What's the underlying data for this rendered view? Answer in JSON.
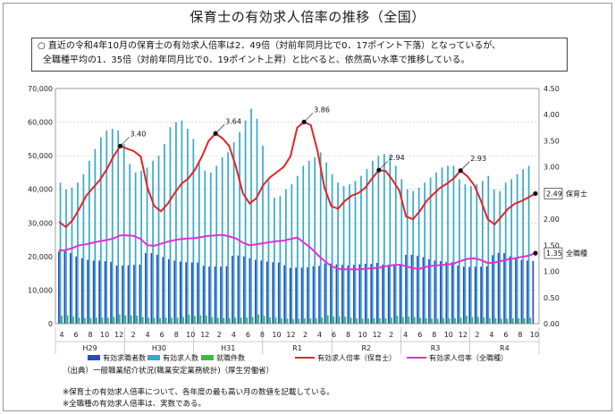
{
  "title": "保育士の有効求人倍率の推移（全国）",
  "summary": {
    "marker": "○",
    "line1": "直近の令和4年10月の保育士の有効求人倍率は2．49倍（対前年同月比で0．17ポイント下落）となっているが、",
    "line2": "全職種平均の1．35倍（対前年同月比で0．19ポイント上昇）と比べると、依然高い水準で推移している。"
  },
  "chart_data": {
    "type": "bar",
    "x_month_labels": [
      "4",
      "6",
      "8",
      "10",
      "12",
      "2",
      "4",
      "6",
      "8",
      "10",
      "12",
      "2",
      "4",
      "6",
      "8",
      "10",
      "12",
      "2",
      "4",
      "6",
      "8",
      "10",
      "12",
      "2",
      "4",
      "6",
      "8",
      "10",
      "12",
      "2",
      "4",
      "6",
      "8",
      "10"
    ],
    "year_labels": [
      "H29",
      "H30",
      "H31",
      "R1",
      "R2",
      "R3",
      "R4"
    ],
    "y_left": {
      "min": 0,
      "max": 70000,
      "ticks": [
        "0",
        "10,000",
        "20,000",
        "30,000",
        "40,000",
        "50,000",
        "60,000",
        "70,000"
      ]
    },
    "y_right": {
      "min": 0,
      "max": 4.5,
      "ticks": [
        "0.00",
        "0.50",
        "1.00",
        "1.50",
        "2.00",
        "2.50",
        "3.00",
        "3.50",
        "4.00",
        "4.50"
      ]
    },
    "series": [
      {
        "name": "有効求職者数",
        "color": "#2f48c8",
        "axis": "left",
        "values": [
          21500,
          21600,
          21000,
          20000,
          19500,
          19000,
          18800,
          18800,
          18600,
          18400,
          17300,
          17300,
          17400,
          17500,
          17600,
          21000,
          21000,
          20500,
          19800,
          19200,
          18800,
          18500,
          18300,
          18200,
          18200,
          17200,
          17000,
          17000,
          17000,
          17100,
          20200,
          20300,
          20000,
          19500,
          19000,
          18800,
          18500,
          18300,
          18200,
          17400,
          16600,
          16700,
          16700,
          16800,
          17100,
          17200,
          18000,
          17900,
          17700,
          17500,
          17300,
          17500,
          17700,
          17800,
          17800,
          18100,
          17600,
          17500,
          17500,
          17700,
          20500,
          20500,
          20200,
          19800,
          19200,
          18800,
          18600,
          18400,
          18300,
          17300,
          17000,
          16900,
          17000,
          17000,
          17100,
          20400,
          21100,
          21000,
          20000,
          19400,
          19000,
          18800,
          18700
        ]
      },
      {
        "name": "有効求人数",
        "color": "#35a9cb",
        "axis": "left",
        "values": [
          42000,
          40000,
          40500,
          42000,
          44500,
          48500,
          52000,
          55500,
          57500,
          58000,
          57500,
          53500,
          47500,
          45000,
          45500,
          46500,
          48500,
          50000,
          53500,
          58500,
          60000,
          60500,
          58000,
          55000,
          48000,
          45500,
          45000,
          47000,
          49500,
          51000,
          54000,
          57000,
          60500,
          64000,
          61000,
          53000,
          42500,
          37500,
          38000,
          40000,
          41500,
          44000,
          47000,
          48500,
          49500,
          51000,
          48000,
          44500,
          42000,
          41000,
          41500,
          42500,
          44000,
          46000,
          48500,
          50000,
          50500,
          50000,
          47000,
          43000,
          40000,
          39500,
          40500,
          42000,
          43500,
          45000,
          46500,
          47000,
          47000,
          43000,
          41500,
          41000,
          41500,
          42500,
          44000,
          40000,
          39500,
          42000,
          43000,
          44500,
          46000,
          47000
        ]
      },
      {
        "name": "就職件数",
        "color": "#3dbb3d",
        "axis": "left",
        "values": [
          2400,
          2500,
          2100,
          1800,
          1700,
          1700,
          1800,
          1800,
          1800,
          2000,
          2800,
          2400,
          2500,
          2400,
          2000,
          1800,
          1700,
          1700,
          1800,
          1800,
          1800,
          2000,
          2700,
          2300,
          2500,
          2400,
          2000,
          1800,
          1700,
          1700,
          1800,
          1800,
          1800,
          2000,
          2700,
          2300,
          1900,
          1800,
          1600,
          1500,
          1400,
          1500,
          1600,
          1600,
          1600,
          1800,
          2500,
          2100,
          2200,
          2100,
          1800,
          1600,
          1500,
          1500,
          1600,
          1600,
          1600,
          1800,
          2400,
          2000,
          2100,
          2000,
          1700,
          1600,
          1500,
          1500,
          1600,
          1600,
          1600,
          1800,
          2400,
          2000,
          2000,
          1900,
          1700,
          1600,
          1500,
          1500,
          1600,
          1600,
          1600,
          1800
        ]
      },
      {
        "name": "有効求人倍率（保育士）",
        "color": "#e4232a",
        "axis": "right",
        "values": [
          1.95,
          1.85,
          1.98,
          2.2,
          2.45,
          2.6,
          2.75,
          2.95,
          3.2,
          3.4,
          3.35,
          3.3,
          3.2,
          2.6,
          2.25,
          2.15,
          2.3,
          2.5,
          2.68,
          2.78,
          2.95,
          3.2,
          3.5,
          3.64,
          3.55,
          3.4,
          3.0,
          2.5,
          2.3,
          2.4,
          2.65,
          2.8,
          2.9,
          3.0,
          3.2,
          3.75,
          3.86,
          3.8,
          3.3,
          2.6,
          2.25,
          2.2,
          2.35,
          2.45,
          2.5,
          2.6,
          2.78,
          2.94,
          2.92,
          2.75,
          2.55,
          2.05,
          2.0,
          2.15,
          2.35,
          2.48,
          2.6,
          2.68,
          2.78,
          2.93,
          2.82,
          2.65,
          2.35,
          2.0,
          1.9,
          2.05,
          2.2,
          2.3,
          2.35,
          2.42,
          2.49
        ]
      },
      {
        "name": "有効求人倍率（全職種）",
        "color": "#e52fd6",
        "axis": "right",
        "values": [
          1.4,
          1.41,
          1.45,
          1.5,
          1.52,
          1.55,
          1.58,
          1.6,
          1.63,
          1.69,
          1.69,
          1.68,
          1.62,
          1.5,
          1.49,
          1.53,
          1.57,
          1.6,
          1.62,
          1.63,
          1.64,
          1.66,
          1.68,
          1.69,
          1.7,
          1.67,
          1.63,
          1.55,
          1.5,
          1.52,
          1.54,
          1.56,
          1.58,
          1.59,
          1.62,
          1.65,
          1.55,
          1.45,
          1.32,
          1.2,
          1.1,
          1.05,
          1.04,
          1.04,
          1.04,
          1.05,
          1.06,
          1.07,
          1.1,
          1.12,
          1.13,
          1.1,
          1.06,
          1.05,
          1.09,
          1.11,
          1.12,
          1.13,
          1.15,
          1.2,
          1.24,
          1.25,
          1.22,
          1.16,
          1.17,
          1.2,
          1.23,
          1.25,
          1.28,
          1.3,
          1.35
        ]
      }
    ],
    "annotations": [
      {
        "text": "3.40",
        "series": "保育士",
        "index": 9
      },
      {
        "text": "3.64",
        "series": "保育士",
        "index": 23
      },
      {
        "text": "3.86",
        "series": "保育士",
        "index": 36
      },
      {
        "text": "2.94",
        "series": "保育士",
        "index": 47
      },
      {
        "text": "2.93",
        "series": "保育士",
        "index": 59
      }
    ],
    "end_labels": [
      {
        "value": "2.49",
        "label": "保育士"
      },
      {
        "value": "1.35",
        "label": "全職種"
      }
    ],
    "legend": [
      "有効求職者数",
      "有効求人数",
      "就職件数",
      "有効求人倍率（保育士）",
      "有効求人倍率（全職種）"
    ]
  },
  "source": "（出典）一般職業紹介状況(職業安定業務統計)（厚生労働省）",
  "notes": [
    "※保育士の有効求人倍率について、各年度の最も高い月の数値を記載している。",
    "※全職種の有効求人倍率は、実数である。"
  ]
}
